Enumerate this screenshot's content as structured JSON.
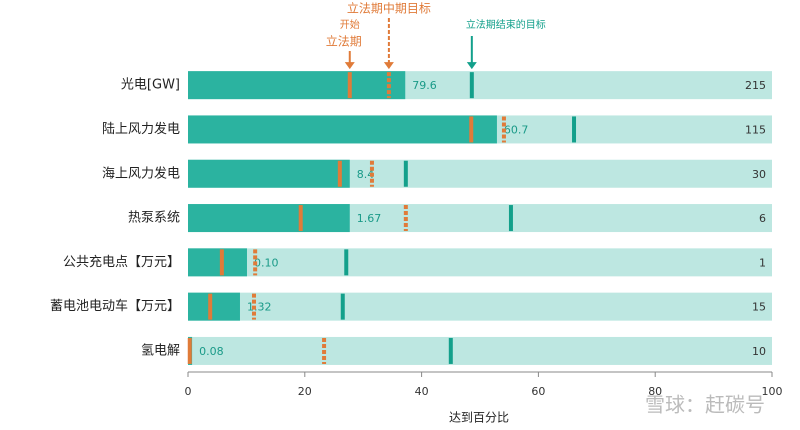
{
  "chart_data": {
    "type": "progress",
    "annotations": {
      "start_top": "开始",
      "start_bottom": "立法期",
      "midterm": "立法期中期目标",
      "end": "立法期结束的目标"
    },
    "xlabel": "达到百分比",
    "watermark": "雪球：赶碳号",
    "categories": [
      "光电[GW]",
      "陆上风力发电",
      "海上风力发电",
      "热泵系统",
      "公共充电点【万元】",
      "蓄电池电动车【万元】",
      "氢电解"
    ],
    "progress": {
      "color": "#2bb3a0",
      "values": [
        37.2,
        52.9,
        27.7,
        27.7,
        10.1,
        8.9,
        0.7
      ]
    },
    "current": [
      79.6,
      60.7,
      8.4,
      1.67,
      {
        "value": 0.1,
        "label": "0.10"
      },
      1.32,
      0.08
    ],
    "targets": [
      215,
      115,
      30,
      6,
      1,
      15,
      10
    ],
    "start": {
      "color": "#e07b39",
      "values": [
        27.7,
        48.5,
        26,
        19.3,
        5.8,
        3.8,
        0.3
      ]
    },
    "midterm": {
      "color": "#e07b39",
      "values": [
        34.4,
        54.1,
        31.5,
        37.3,
        11.5,
        11.3,
        23.3
      ]
    },
    "end": {
      "color": "#13a08b",
      "values": [
        48.6,
        66.1,
        37.3,
        55.3,
        27.1,
        26.5,
        45
      ]
    },
    "track_color": "#bde7e1",
    "xlim": [
      0,
      100
    ],
    "xticks": [
      0,
      20,
      40,
      60,
      80,
      100
    ]
  }
}
